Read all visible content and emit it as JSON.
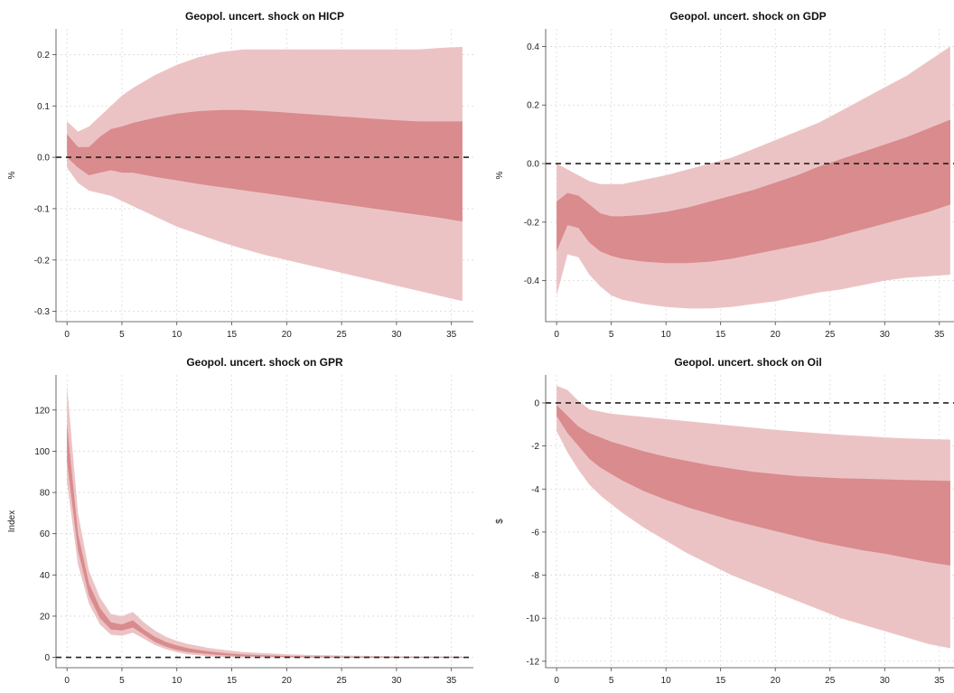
{
  "colors": {
    "band_outer": "#ecc3c4",
    "band_inner": "#d98b8d",
    "zero_line": "#222222"
  },
  "chart_data": [
    {
      "type": "area",
      "title": "Geopol. uncert. shock on HICP",
      "ylabel": "%",
      "xlabel": "",
      "xlim": [
        -1,
        37
      ],
      "ylim": [
        -0.32,
        0.25
      ],
      "xticks": [
        0,
        5,
        10,
        15,
        20,
        25,
        30,
        35
      ],
      "yticks": [
        -0.3,
        -0.2,
        -0.1,
        0.0,
        0.1,
        0.2
      ],
      "ytick_labels": [
        "-0.3",
        "-0.2",
        "-0.1",
        "0.0",
        "0.1",
        "0.2"
      ],
      "grid": true,
      "zero_line": 0,
      "x": [
        0,
        1,
        2,
        3,
        4,
        5,
        6,
        8,
        10,
        12,
        14,
        16,
        18,
        20,
        22,
        24,
        26,
        28,
        30,
        32,
        34,
        36
      ],
      "series": [
        {
          "band": "outer",
          "upper": [
            0.07,
            0.05,
            0.06,
            0.08,
            0.1,
            0.12,
            0.135,
            0.16,
            0.18,
            0.195,
            0.205,
            0.21,
            0.21,
            0.21,
            0.21,
            0.21,
            0.21,
            0.21,
            0.21,
            0.21,
            0.213,
            0.215
          ],
          "lower": [
            -0.02,
            -0.05,
            -0.065,
            -0.07,
            -0.075,
            -0.085,
            -0.095,
            -0.115,
            -0.135,
            -0.15,
            -0.165,
            -0.178,
            -0.19,
            -0.2,
            -0.21,
            -0.22,
            -0.23,
            -0.24,
            -0.25,
            -0.26,
            -0.27,
            -0.28
          ]
        },
        {
          "band": "inner",
          "upper": [
            0.045,
            0.02,
            0.02,
            0.04,
            0.055,
            0.06,
            0.067,
            0.077,
            0.085,
            0.09,
            0.092,
            0.092,
            0.09,
            0.087,
            0.084,
            0.081,
            0.078,
            0.075,
            0.072,
            0.07,
            0.07,
            0.07
          ],
          "lower": [
            0.0,
            -0.02,
            -0.035,
            -0.03,
            -0.025,
            -0.03,
            -0.03,
            -0.038,
            -0.045,
            -0.052,
            -0.058,
            -0.064,
            -0.07,
            -0.076,
            -0.082,
            -0.088,
            -0.094,
            -0.1,
            -0.106,
            -0.112,
            -0.118,
            -0.125
          ]
        }
      ]
    },
    {
      "type": "area",
      "title": "Geopol. uncert. shock on GDP",
      "ylabel": "%",
      "xlabel": "",
      "xlim": [
        -1,
        37
      ],
      "ylim": [
        -0.54,
        0.46
      ],
      "xticks": [
        0,
        5,
        10,
        15,
        20,
        25,
        30,
        35
      ],
      "yticks": [
        -0.4,
        -0.2,
        0.0,
        0.2,
        0.4
      ],
      "ytick_labels": [
        "-0.4",
        "-0.2",
        "0.0",
        "0.2",
        "0.4"
      ],
      "grid": true,
      "zero_line": 0,
      "x": [
        0,
        1,
        2,
        3,
        4,
        5,
        6,
        8,
        10,
        12,
        14,
        16,
        18,
        20,
        22,
        24,
        26,
        28,
        30,
        32,
        34,
        36
      ],
      "series": [
        {
          "band": "outer",
          "upper": [
            0.0,
            -0.02,
            -0.04,
            -0.06,
            -0.07,
            -0.07,
            -0.07,
            -0.055,
            -0.04,
            -0.02,
            0.0,
            0.02,
            0.05,
            0.08,
            0.11,
            0.14,
            0.18,
            0.22,
            0.26,
            0.3,
            0.35,
            0.4
          ],
          "lower": [
            -0.45,
            -0.31,
            -0.32,
            -0.38,
            -0.42,
            -0.45,
            -0.465,
            -0.48,
            -0.49,
            -0.495,
            -0.495,
            -0.49,
            -0.48,
            -0.47,
            -0.455,
            -0.44,
            -0.43,
            -0.415,
            -0.4,
            -0.39,
            -0.385,
            -0.38
          ]
        },
        {
          "band": "inner",
          "upper": [
            -0.13,
            -0.1,
            -0.11,
            -0.14,
            -0.17,
            -0.18,
            -0.18,
            -0.175,
            -0.165,
            -0.15,
            -0.13,
            -0.11,
            -0.09,
            -0.065,
            -0.04,
            -0.01,
            0.015,
            0.04,
            0.065,
            0.09,
            0.12,
            0.15
          ],
          "lower": [
            -0.3,
            -0.21,
            -0.22,
            -0.27,
            -0.3,
            -0.315,
            -0.325,
            -0.335,
            -0.34,
            -0.34,
            -0.335,
            -0.325,
            -0.31,
            -0.295,
            -0.28,
            -0.265,
            -0.245,
            -0.225,
            -0.205,
            -0.185,
            -0.165,
            -0.14
          ]
        }
      ]
    },
    {
      "type": "area",
      "title": "Geopol. uncert. shock on GPR",
      "ylabel": "Index",
      "xlabel": "",
      "xlim": [
        -1,
        37
      ],
      "ylim": [
        -5,
        137
      ],
      "xticks": [
        0,
        5,
        10,
        15,
        20,
        25,
        30,
        35
      ],
      "yticks": [
        0,
        20,
        40,
        60,
        80,
        100,
        120
      ],
      "ytick_labels": [
        "0",
        "20",
        "40",
        "60",
        "80",
        "100",
        "120"
      ],
      "grid": true,
      "zero_line": 0,
      "x": [
        0,
        1,
        2,
        3,
        4,
        5,
        6,
        7,
        8,
        9,
        10,
        11,
        12,
        13,
        14,
        15,
        16,
        18,
        20,
        22,
        24,
        26,
        28,
        30,
        32,
        34,
        36
      ],
      "series": [
        {
          "band": "outer",
          "upper": [
            132,
            70,
            42,
            29,
            21,
            20,
            22,
            17,
            13,
            10,
            8,
            6.5,
            5.5,
            4.5,
            3.8,
            3.2,
            2.6,
            2,
            1.5,
            1.2,
            1,
            0.8,
            0.7,
            0.6,
            0.5,
            0.5,
            0.5
          ],
          "lower": [
            85,
            45,
            26,
            16,
            11,
            10.5,
            12,
            9,
            6,
            4,
            2.5,
            1.5,
            1,
            0.5,
            0.3,
            0.2,
            0.1,
            0,
            -0.2,
            -0.2,
            -0.2,
            -0.2,
            -0.2,
            -0.2,
            -0.2,
            -0.2,
            -0.2
          ]
        },
        {
          "band": "inner",
          "upper": [
            113,
            60,
            36,
            24,
            17,
            16,
            18,
            13.5,
            10,
            7.5,
            5.8,
            4.5,
            3.6,
            2.9,
            2.3,
            1.8,
            1.4,
            1,
            0.7,
            0.5,
            0.4,
            0.3,
            0.3,
            0.2,
            0.2,
            0.2,
            0.2
          ],
          "lower": [
            95,
            52,
            30,
            19,
            13.5,
            13,
            14.5,
            11,
            7.5,
            5.2,
            3.6,
            2.6,
            2,
            1.5,
            1.1,
            0.8,
            0.6,
            0.4,
            0.2,
            0.1,
            0,
            0,
            0,
            0,
            0,
            0,
            0
          ]
        }
      ]
    },
    {
      "type": "area",
      "title": "Geopol. uncert. shock on Oil",
      "ylabel": "$",
      "xlabel": "",
      "xlim": [
        -1,
        37
      ],
      "ylim": [
        -12.3,
        1.3
      ],
      "xticks": [
        0,
        5,
        10,
        15,
        20,
        25,
        30,
        35
      ],
      "yticks": [
        -12,
        -10,
        -8,
        -6,
        -4,
        -2,
        0
      ],
      "ytick_labels": [
        "-12",
        "-10",
        "-8",
        "-6",
        "-4",
        "-2",
        "0"
      ],
      "grid": true,
      "zero_line": 0,
      "x": [
        0,
        1,
        2,
        3,
        4,
        5,
        6,
        8,
        10,
        12,
        14,
        16,
        18,
        20,
        22,
        24,
        26,
        28,
        30,
        32,
        34,
        36
      ],
      "series": [
        {
          "band": "outer",
          "upper": [
            0.8,
            0.6,
            0.1,
            -0.3,
            -0.4,
            -0.5,
            -0.55,
            -0.65,
            -0.75,
            -0.85,
            -0.95,
            -1.05,
            -1.15,
            -1.25,
            -1.33,
            -1.41,
            -1.48,
            -1.54,
            -1.6,
            -1.65,
            -1.68,
            -1.7
          ],
          "lower": [
            -1.3,
            -2.3,
            -3.1,
            -3.8,
            -4.3,
            -4.7,
            -5.1,
            -5.8,
            -6.4,
            -7.0,
            -7.5,
            -8.0,
            -8.4,
            -8.8,
            -9.2,
            -9.6,
            -10.0,
            -10.3,
            -10.6,
            -10.9,
            -11.2,
            -11.4
          ]
        },
        {
          "band": "inner",
          "upper": [
            -0.1,
            -0.6,
            -1.1,
            -1.4,
            -1.6,
            -1.8,
            -1.95,
            -2.25,
            -2.5,
            -2.7,
            -2.9,
            -3.05,
            -3.2,
            -3.3,
            -3.4,
            -3.45,
            -3.5,
            -3.52,
            -3.55,
            -3.58,
            -3.6,
            -3.62
          ],
          "lower": [
            -0.6,
            -1.4,
            -2.0,
            -2.6,
            -3.0,
            -3.3,
            -3.6,
            -4.1,
            -4.5,
            -4.85,
            -5.15,
            -5.45,
            -5.7,
            -5.95,
            -6.2,
            -6.45,
            -6.65,
            -6.85,
            -7.0,
            -7.2,
            -7.4,
            -7.55
          ]
        }
      ]
    }
  ]
}
